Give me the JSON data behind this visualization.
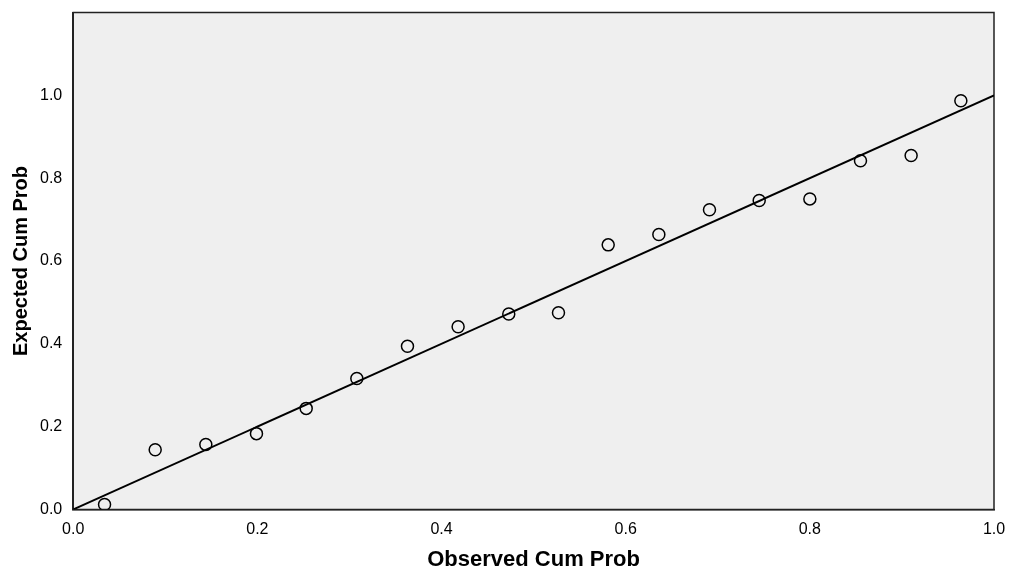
{
  "chart_data": {
    "type": "scatter",
    "xlabel": "Observed Cum Prob",
    "ylabel": "Expected Cum Prob",
    "grid": false,
    "legend": false,
    "marker": "circle",
    "xlim": [
      0,
      1
    ],
    "ylim": [
      0,
      1.2
    ],
    "xticks": [
      {
        "value": 0,
        "label": "0.0"
      },
      {
        "value": 0.2,
        "label": "0.2"
      },
      {
        "value": 0.4,
        "label": "0.4"
      },
      {
        "value": 0.6,
        "label": "0.6"
      },
      {
        "value": 0.8,
        "label": "0.8"
      },
      {
        "value": 1,
        "label": "1.0"
      }
    ],
    "yticks": [
      {
        "value": 0,
        "label": "0.0"
      },
      {
        "value": 0.2,
        "label": "0.2"
      },
      {
        "value": 0.4,
        "label": "0.4"
      },
      {
        "value": 0.6,
        "label": "0.6"
      },
      {
        "value": 0.8,
        "label": "0.8"
      },
      {
        "value": 1,
        "label": "1.0"
      }
    ],
    "series": [
      {
        "color": "#000000",
        "x": [
          0.034,
          0.089,
          0.144,
          0.199,
          0.253,
          0.308,
          0.363,
          0.418,
          0.473,
          0.527,
          0.581,
          0.636,
          0.691,
          0.745,
          0.8,
          0.855,
          0.91,
          0.964
        ],
        "values": [
          0.012,
          0.144,
          0.157,
          0.183,
          0.244,
          0.316,
          0.394,
          0.441,
          0.472,
          0.475,
          0.639,
          0.664,
          0.724,
          0.746,
          0.75,
          0.842,
          0.855,
          0.987
        ]
      },
      {
        "type": "line",
        "color": "#000000",
        "x": [
          0,
          1
        ],
        "values": [
          0,
          1
        ],
        "marker": "none",
        "line_style": "solid"
      }
    ]
  }
}
